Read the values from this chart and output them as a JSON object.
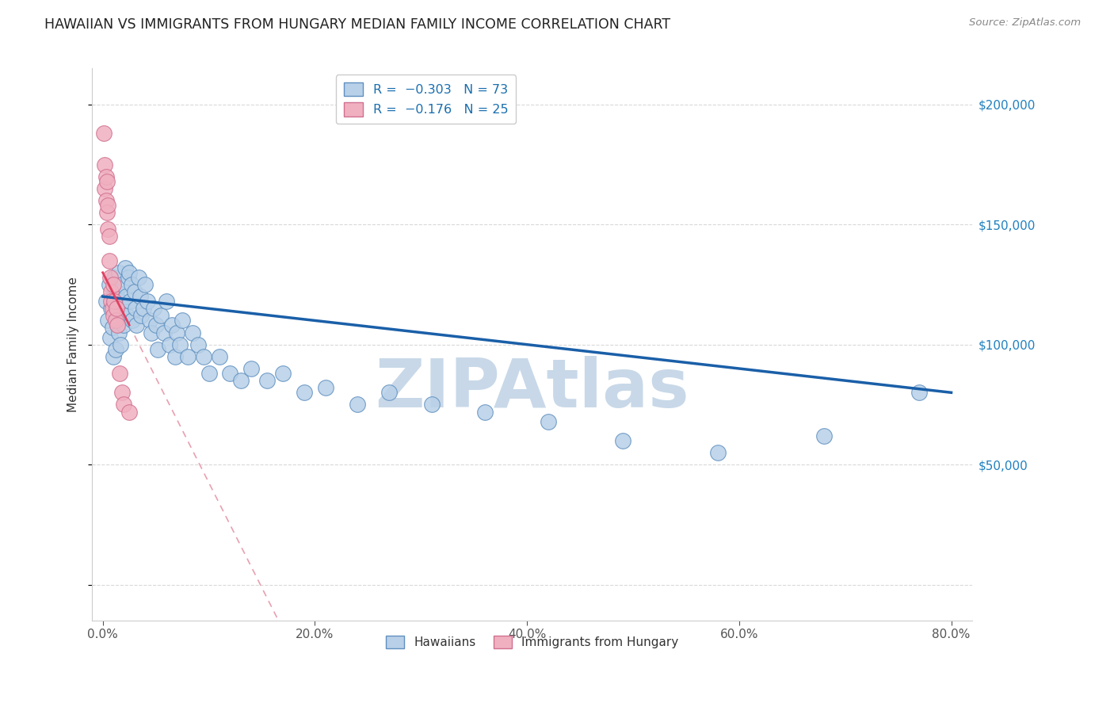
{
  "title": "HAWAIIAN VS IMMIGRANTS FROM HUNGARY MEDIAN FAMILY INCOME CORRELATION CHART",
  "source": "Source: ZipAtlas.com",
  "ylabel": "Median Family Income",
  "xlabel_ticks": [
    "0.0%",
    "20.0%",
    "40.0%",
    "60.0%",
    "80.0%"
  ],
  "xlabel_tick_vals": [
    0.0,
    0.2,
    0.4,
    0.6,
    0.8
  ],
  "ylabel_ticks": [
    0,
    50000,
    100000,
    150000,
    200000
  ],
  "ylabel_tick_labels": [
    "",
    "$50,000",
    "$100,000",
    "$150,000",
    "$200,000"
  ],
  "xlim": [
    -0.01,
    0.82
  ],
  "ylim": [
    -15000,
    215000
  ],
  "blue_R": -0.303,
  "blue_N": 73,
  "pink_R": -0.176,
  "pink_N": 25,
  "blue_color": "#b8d0e8",
  "blue_edge_color": "#6090c0",
  "pink_color": "#f0b0c0",
  "pink_edge_color": "#d07090",
  "blue_line_color": "#1a5fa8",
  "pink_line_color": "#e04060",
  "pink_dash_color": "#e8a0b0",
  "watermark_color": "#c8d8e8",
  "background_color": "#ffffff",
  "grid_color": "#d0d0d0",
  "hawaiians_x": [
    0.003,
    0.005,
    0.006,
    0.007,
    0.008,
    0.009,
    0.01,
    0.01,
    0.011,
    0.012,
    0.012,
    0.013,
    0.014,
    0.015,
    0.015,
    0.016,
    0.017,
    0.018,
    0.019,
    0.02,
    0.021,
    0.022,
    0.023,
    0.024,
    0.025,
    0.026,
    0.027,
    0.028,
    0.03,
    0.031,
    0.032,
    0.034,
    0.035,
    0.036,
    0.038,
    0.04,
    0.042,
    0.044,
    0.046,
    0.048,
    0.05,
    0.052,
    0.055,
    0.058,
    0.06,
    0.063,
    0.065,
    0.068,
    0.07,
    0.073,
    0.075,
    0.08,
    0.085,
    0.09,
    0.095,
    0.1,
    0.11,
    0.12,
    0.13,
    0.14,
    0.155,
    0.17,
    0.19,
    0.21,
    0.24,
    0.27,
    0.31,
    0.36,
    0.42,
    0.49,
    0.58,
    0.68,
    0.77
  ],
  "hawaiians_y": [
    118000,
    110000,
    125000,
    103000,
    115000,
    107000,
    120000,
    95000,
    128000,
    112000,
    98000,
    122000,
    108000,
    130000,
    105000,
    118000,
    100000,
    125000,
    115000,
    108000,
    132000,
    120000,
    112000,
    128000,
    130000,
    118000,
    125000,
    110000,
    122000,
    115000,
    108000,
    128000,
    120000,
    112000,
    115000,
    125000,
    118000,
    110000,
    105000,
    115000,
    108000,
    98000,
    112000,
    105000,
    118000,
    100000,
    108000,
    95000,
    105000,
    100000,
    110000,
    95000,
    105000,
    100000,
    95000,
    88000,
    95000,
    88000,
    85000,
    90000,
    85000,
    88000,
    80000,
    82000,
    75000,
    80000,
    75000,
    72000,
    68000,
    60000,
    55000,
    62000,
    80000
  ],
  "hungary_x": [
    0.001,
    0.002,
    0.002,
    0.003,
    0.003,
    0.004,
    0.004,
    0.005,
    0.005,
    0.006,
    0.006,
    0.007,
    0.008,
    0.008,
    0.009,
    0.01,
    0.01,
    0.011,
    0.012,
    0.013,
    0.014,
    0.016,
    0.018,
    0.02,
    0.025
  ],
  "hungary_y": [
    188000,
    175000,
    165000,
    170000,
    160000,
    168000,
    155000,
    158000,
    148000,
    145000,
    135000,
    128000,
    122000,
    118000,
    115000,
    125000,
    112000,
    118000,
    110000,
    115000,
    108000,
    88000,
    80000,
    75000,
    72000
  ]
}
